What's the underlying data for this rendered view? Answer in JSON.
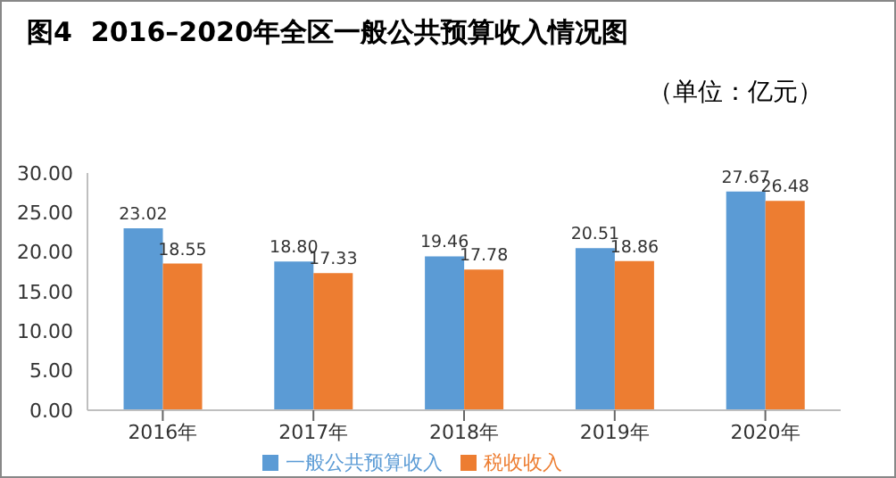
{
  "chart_data": {
    "type": "bar",
    "title": "图4  2016–2020年全区一般公共预算收入情况图",
    "subtitle": "（单位：亿元）",
    "categories": [
      "2016年",
      "2017年",
      "2018年",
      "2019年",
      "2020年"
    ],
    "series": [
      {
        "name": "一般公共预算收入",
        "color": "#5b9bd5",
        "values": [
          23.02,
          18.8,
          19.46,
          20.51,
          27.67
        ],
        "value_labels": [
          "23.02",
          "18.80",
          "19.46",
          "20.51",
          "27.67"
        ]
      },
      {
        "name": "税收收入",
        "color": "#ed7d31",
        "values": [
          18.55,
          17.33,
          17.78,
          18.86,
          26.48
        ],
        "value_labels": [
          "18.55",
          "17.33",
          "17.78",
          "18.86",
          "26.48"
        ]
      }
    ],
    "ylim": [
      0,
      30
    ],
    "yticks": [
      {
        "value": 0,
        "label": "0.00"
      },
      {
        "value": 5,
        "label": "5.00"
      },
      {
        "value": 10,
        "label": "10.00"
      },
      {
        "value": 15,
        "label": "15.00"
      },
      {
        "value": 20,
        "label": "20.00"
      },
      {
        "value": 25,
        "label": "25.00"
      },
      {
        "value": 30,
        "label": "30.00"
      }
    ],
    "grid": false,
    "legend": "bottom"
  }
}
